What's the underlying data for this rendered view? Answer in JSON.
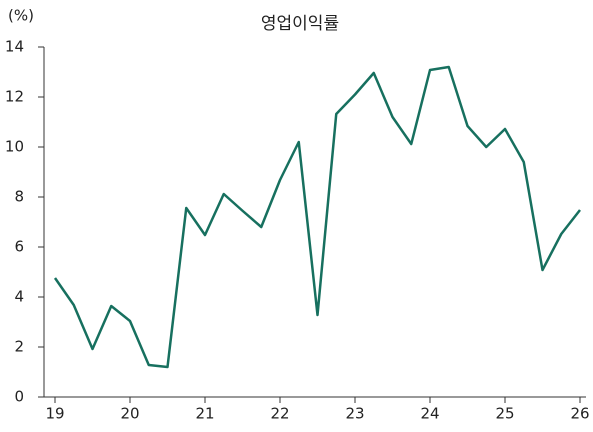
{
  "chart_data": {
    "type": "line",
    "title": "영업이익률",
    "y_label": "(%)",
    "categories": [
      "19",
      null,
      null,
      null,
      "20",
      null,
      null,
      null,
      "21",
      null,
      null,
      null,
      "22",
      null,
      null,
      null,
      "23",
      null,
      null,
      null,
      "24",
      null,
      null,
      null,
      "25",
      null,
      null,
      null,
      "26"
    ],
    "series": [
      {
        "name": "영업이익률",
        "color": "#17705f",
        "values": [
          4.76,
          3.68,
          1.92,
          3.64,
          3.04,
          1.28,
          1.2,
          7.56,
          6.48,
          8.12,
          7.45,
          6.8,
          8.68,
          10.2,
          3.28,
          11.32,
          12.1,
          12.96,
          11.2,
          10.12,
          13.08,
          13.2,
          10.84,
          10.0,
          10.72,
          9.4,
          5.08,
          6.52,
          7.48
        ]
      }
    ],
    "ylim": [
      0,
      14
    ],
    "yticks": [
      0,
      2,
      4,
      6,
      8,
      10,
      12,
      14
    ],
    "grid": false
  }
}
